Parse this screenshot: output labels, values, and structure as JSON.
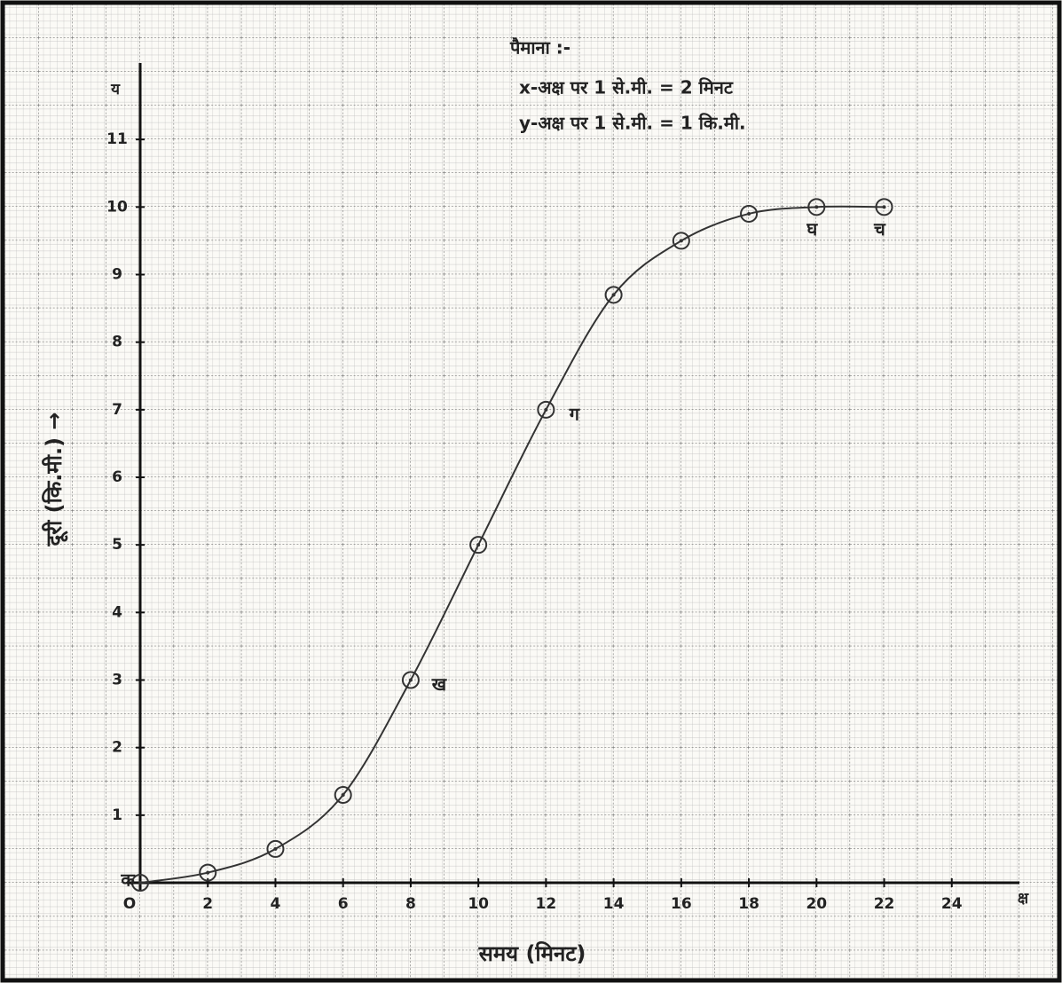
{
  "chart_data": {
    "type": "line",
    "scale_title": "पैमाना :-",
    "scale_notes": [
      "x-अक्ष पर 1 से.मी. = 2 मिनट",
      "y-अक्ष पर 1 से.मी. = 1 कि.मी."
    ],
    "x_label": "समय (मिनट)",
    "y_label": "दूरी (कि.मी.) →",
    "x_axis_end": "क्ष",
    "y_axis_end": "य",
    "x": [
      0,
      2,
      4,
      6,
      8,
      10,
      12,
      14,
      16,
      18,
      20,
      22
    ],
    "series": [
      {
        "color": "#333333",
        "values": [
          0,
          0.15,
          0.5,
          1.3,
          3,
          5,
          7,
          8.7,
          9.5,
          9.9,
          10,
          10
        ]
      }
    ],
    "point_labels": [
      "क",
      null,
      null,
      null,
      "ख",
      null,
      "ग",
      null,
      null,
      null,
      "घ",
      "च"
    ],
    "xlim": [
      0,
      26
    ],
    "ylim": [
      0,
      12
    ],
    "xticks": [
      {
        "value": 0,
        "label": "O"
      },
      2,
      4,
      6,
      8,
      10,
      12,
      14,
      16,
      18,
      20,
      22,
      24
    ],
    "yticks": [
      1,
      2,
      3,
      4,
      5,
      6,
      7,
      8,
      9,
      10,
      11
    ],
    "grid": true
  }
}
